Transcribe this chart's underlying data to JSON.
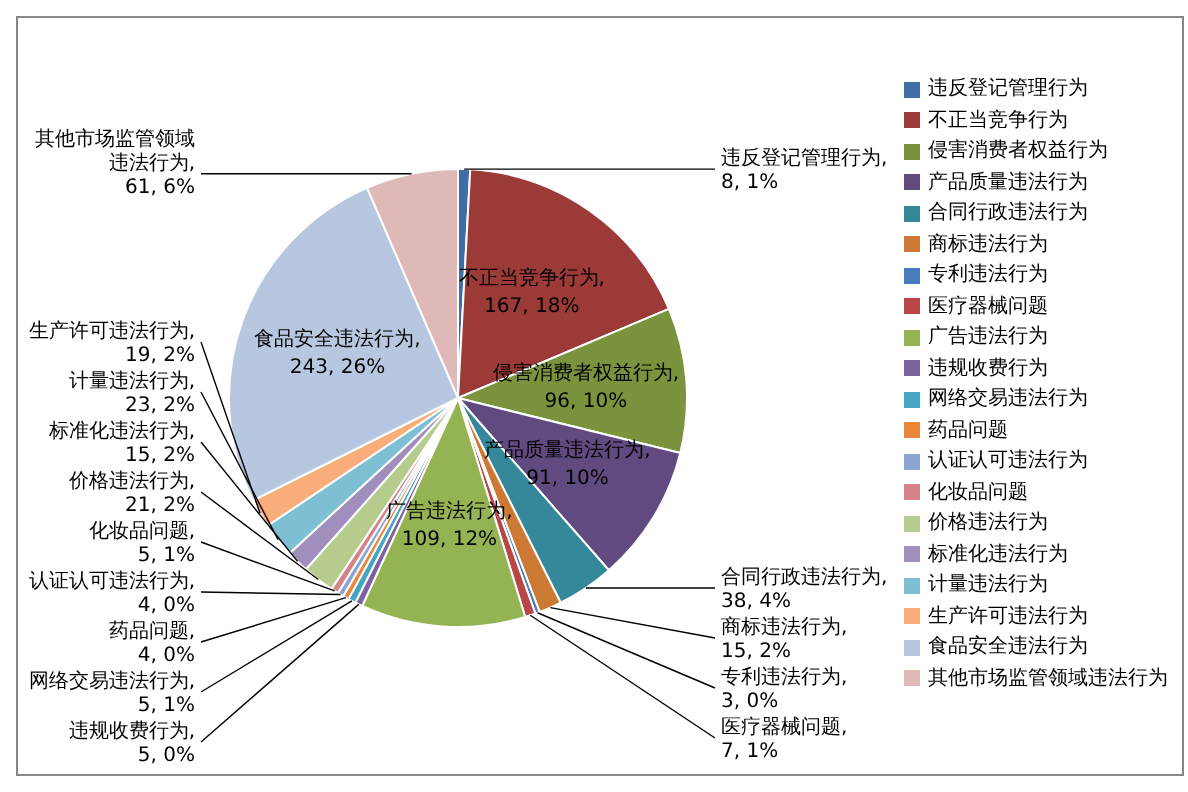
{
  "chart_data": {
    "type": "pie",
    "categories": [
      "违反登记管理行为",
      "不正当竞争行为",
      "侵害消费者权益行为",
      "产品质量违法行为",
      "合同行政违法行为",
      "商标违法行为",
      "专利违法行为",
      "医疗器械问题",
      "广告违法行为",
      "违规收费行为",
      "网络交易违法行为",
      "药品问题",
      "认证认可违法行为",
      "化妆品问题",
      "价格违法行为",
      "标准化违法行为",
      "计量违法行为",
      "生产许可违法行为",
      "食品安全违法行为",
      "其他市场监管领域违法行为"
    ],
    "values": [
      8,
      167,
      96,
      91,
      38,
      15,
      3,
      7,
      109,
      5,
      5,
      4,
      4,
      5,
      21,
      15,
      23,
      19,
      243,
      61
    ],
    "colors": [
      "#3f6ea6",
      "#9c3a38",
      "#7a933c",
      "#604a80",
      "#35879a",
      "#cc7a33",
      "#4a7ebb",
      "#b94646",
      "#94b454",
      "#7d62a0",
      "#44a6c2",
      "#e8873a",
      "#8aa5d4",
      "#d48486",
      "#b5cc8c",
      "#a08fbc",
      "#7fbfd4",
      "#f9ad7a",
      "#b8c7e0",
      "#dfb8b8"
    ],
    "value_labels": [
      "违反登记管理行为, 8, 1%",
      "不正当竞争行为, 167, 18%",
      "侵害消费者权益行为, 96, 10%",
      "产品质量违法行为, 91, 10%",
      "合同行政违法行为, 38, 4%",
      "商标违法行为, 15, 2%",
      "专利违法行为, 3, 0%",
      "医疗器械问题, 7, 1%",
      "广告违法行为, 109, 12%",
      "违规收费行为, 5, 0%",
      "网络交易违法行为, 5, 1%",
      "药品问题, 4, 0%",
      "认证认可违法行为, 4, 0%",
      "化妆品问题, 5, 1%",
      "价格违法行为, 21, 2%",
      "标准化违法行为, 15, 2%",
      "计量违法行为, 23, 2%",
      "生产许可违法行为, 19, 2%",
      "食品安全违法行为, 243, 26%",
      "其他市场监管领域违法行为, 61, 6%"
    ],
    "legend": "right"
  }
}
